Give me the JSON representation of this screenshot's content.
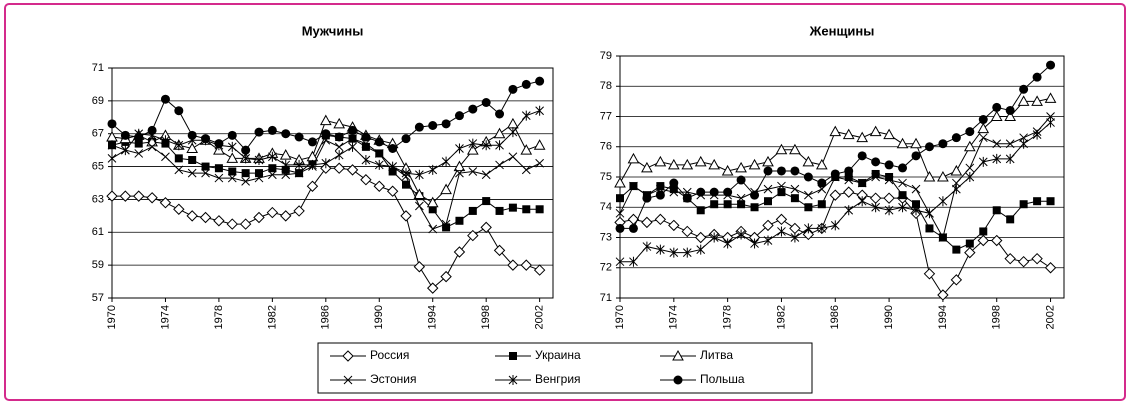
{
  "chart_data": [
    {
      "type": "line",
      "title": "Мужчины",
      "x": [
        1970,
        1971,
        1972,
        1973,
        1974,
        1975,
        1976,
        1977,
        1978,
        1979,
        1980,
        1981,
        1982,
        1983,
        1984,
        1985,
        1986,
        1987,
        1988,
        1989,
        1990,
        1991,
        1992,
        1993,
        1994,
        1995,
        1996,
        1997,
        1998,
        1999,
        2000,
        2001,
        2002
      ],
      "xlim": [
        1970,
        2003
      ],
      "xticks": [
        1970,
        1974,
        1978,
        1982,
        1986,
        1990,
        1994,
        1998,
        2002
      ],
      "ylim": [
        57,
        71
      ],
      "yticks": [
        57,
        59,
        61,
        63,
        65,
        67,
        69,
        71
      ],
      "grid": true,
      "series": [
        {
          "name": "Россия",
          "color": "#000000",
          "marker": "diamond",
          "values": [
            63.2,
            63.2,
            63.2,
            63.1,
            62.8,
            62.4,
            62.0,
            61.9,
            61.7,
            61.5,
            61.5,
            61.9,
            62.2,
            62.0,
            62.3,
            63.8,
            64.9,
            64.9,
            64.8,
            64.2,
            63.8,
            63.5,
            62.0,
            58.9,
            57.6,
            58.3,
            59.8,
            60.8,
            61.3,
            59.9,
            59.0,
            59.0,
            58.7
          ]
        },
        {
          "name": "Украина",
          "color": "#000000",
          "marker": "square",
          "values": [
            66.3,
            66.5,
            66.4,
            66.5,
            66.4,
            65.5,
            65.4,
            65.0,
            64.9,
            64.7,
            64.6,
            64.6,
            64.9,
            64.8,
            64.6,
            65.3,
            66.9,
            66.8,
            66.7,
            66.2,
            65.8,
            64.7,
            63.9,
            63.2,
            62.4,
            61.3,
            61.7,
            62.3,
            62.9,
            62.3,
            62.5,
            62.4,
            62.4
          ]
        },
        {
          "name": "Литва",
          "color": "#000000",
          "marker": "triangle",
          "values": [
            66.8,
            66.7,
            66.9,
            66.5,
            66.9,
            66.3,
            66.1,
            66.6,
            66.0,
            65.5,
            65.5,
            65.5,
            65.8,
            65.7,
            65.4,
            65.6,
            67.8,
            67.6,
            67.4,
            66.9,
            66.6,
            66.4,
            64.9,
            63.3,
            62.8,
            63.6,
            65.0,
            66.0,
            66.5,
            67.0,
            67.6,
            66.0,
            66.3
          ]
        },
        {
          "name": "Эстония",
          "color": "#000000",
          "marker": "x",
          "values": [
            65.5,
            66.0,
            65.8,
            66.2,
            65.6,
            64.8,
            64.6,
            64.6,
            64.3,
            64.3,
            64.1,
            64.3,
            64.5,
            64.5,
            64.6,
            65.0,
            66.6,
            66.2,
            66.7,
            66.4,
            65.8,
            65.0,
            64.4,
            62.6,
            61.2,
            61.5,
            64.6,
            64.7,
            64.5,
            65.1,
            65.6,
            64.8,
            65.2
          ]
        },
        {
          "name": "Венгрия",
          "color": "#000000",
          "marker": "star",
          "values": [
            66.3,
            66.0,
            67.0,
            66.9,
            66.6,
            66.3,
            66.6,
            66.6,
            66.3,
            66.2,
            65.5,
            65.4,
            65.6,
            65.1,
            65.1,
            65.1,
            65.2,
            65.7,
            66.2,
            65.4,
            65.1,
            65.0,
            64.6,
            64.5,
            64.8,
            65.3,
            66.1,
            66.4,
            66.3,
            66.3,
            67.1,
            68.1,
            68.4
          ]
        },
        {
          "name": "Польша",
          "color": "#000000",
          "marker": "circle",
          "values": [
            67.6,
            66.9,
            66.8,
            67.2,
            69.1,
            68.4,
            66.9,
            66.7,
            66.4,
            66.9,
            66.0,
            67.1,
            67.2,
            67.0,
            66.8,
            66.5,
            67.0,
            66.8,
            67.2,
            66.8,
            66.5,
            66.1,
            66.7,
            67.4,
            67.5,
            67.6,
            68.1,
            68.5,
            68.9,
            68.2,
            69.7,
            70.0,
            70.2
          ]
        }
      ]
    },
    {
      "type": "line",
      "title": "Женщины",
      "x": [
        1970,
        1971,
        1972,
        1973,
        1974,
        1975,
        1976,
        1977,
        1978,
        1979,
        1980,
        1981,
        1982,
        1983,
        1984,
        1985,
        1986,
        1987,
        1988,
        1989,
        1990,
        1991,
        1992,
        1993,
        1994,
        1995,
        1996,
        1997,
        1998,
        1999,
        2000,
        2001,
        2002
      ],
      "xlim": [
        1970,
        2003
      ],
      "xticks": [
        1970,
        1974,
        1978,
        1982,
        1986,
        1990,
        1994,
        1998,
        2002
      ],
      "ylim": [
        71,
        79
      ],
      "yticks": [
        71,
        72,
        73,
        74,
        75,
        76,
        77,
        78,
        79
      ],
      "grid": true,
      "series": [
        {
          "name": "Россия",
          "color": "#000000",
          "marker": "diamond",
          "values": [
            73.5,
            73.6,
            73.5,
            73.6,
            73.4,
            73.2,
            73.0,
            73.1,
            73.0,
            73.2,
            73.0,
            73.4,
            73.6,
            73.3,
            73.1,
            73.3,
            74.4,
            74.5,
            74.4,
            74.3,
            74.3,
            74.3,
            73.8,
            71.8,
            71.1,
            71.6,
            72.5,
            72.9,
            72.9,
            72.3,
            72.2,
            72.3,
            72.0
          ]
        },
        {
          "name": "Украина",
          "color": "#000000",
          "marker": "square",
          "values": [
            74.3,
            74.7,
            74.4,
            74.7,
            74.6,
            74.3,
            73.9,
            74.1,
            74.1,
            74.1,
            74.0,
            74.2,
            74.5,
            74.3,
            74.0,
            74.1,
            75.0,
            75.0,
            74.8,
            75.1,
            75.0,
            74.4,
            74.1,
            73.3,
            73.0,
            72.6,
            72.8,
            73.2,
            73.9,
            73.6,
            74.1,
            74.2,
            74.2
          ]
        },
        {
          "name": "Литва",
          "color": "#000000",
          "marker": "triangle",
          "values": [
            74.8,
            75.6,
            75.3,
            75.5,
            75.4,
            75.4,
            75.5,
            75.4,
            75.2,
            75.3,
            75.4,
            75.5,
            75.9,
            75.9,
            75.5,
            75.4,
            76.5,
            76.4,
            76.3,
            76.5,
            76.4,
            76.1,
            76.1,
            75.0,
            75.0,
            75.2,
            76.0,
            76.6,
            77.0,
            77.0,
            77.5,
            77.5,
            77.6
          ]
        },
        {
          "name": "Эстония",
          "color": "#000000",
          "marker": "x",
          "values": [
            73.8,
            74.7,
            74.4,
            74.6,
            74.5,
            74.5,
            74.4,
            74.4,
            74.4,
            74.3,
            74.5,
            74.6,
            74.7,
            74.6,
            74.4,
            74.6,
            75.0,
            74.9,
            74.8,
            75.0,
            74.9,
            74.8,
            74.6,
            73.8,
            73.0,
            74.8,
            75.3,
            76.3,
            76.1,
            76.1,
            76.3,
            76.5,
            77.0
          ]
        },
        {
          "name": "Венгрия",
          "color": "#000000",
          "marker": "star",
          "values": [
            72.2,
            72.2,
            72.7,
            72.6,
            72.5,
            72.5,
            72.6,
            73.0,
            72.8,
            73.1,
            72.8,
            72.9,
            73.2,
            73.0,
            73.3,
            73.3,
            73.4,
            73.9,
            74.2,
            74.0,
            73.9,
            74.0,
            73.9,
            73.8,
            74.2,
            74.6,
            75.0,
            75.5,
            75.6,
            75.6,
            76.1,
            76.4,
            76.8
          ]
        },
        {
          "name": "Польша",
          "color": "#000000",
          "marker": "circle",
          "values": [
            73.3,
            73.3,
            74.3,
            74.4,
            74.8,
            74.3,
            74.5,
            74.5,
            74.5,
            74.9,
            74.4,
            75.2,
            75.2,
            75.2,
            75.0,
            74.8,
            75.1,
            75.2,
            75.7,
            75.5,
            75.4,
            75.3,
            75.7,
            76.0,
            76.1,
            76.3,
            76.5,
            76.9,
            77.3,
            77.2,
            77.9,
            78.3,
            78.7
          ]
        }
      ]
    }
  ]
}
